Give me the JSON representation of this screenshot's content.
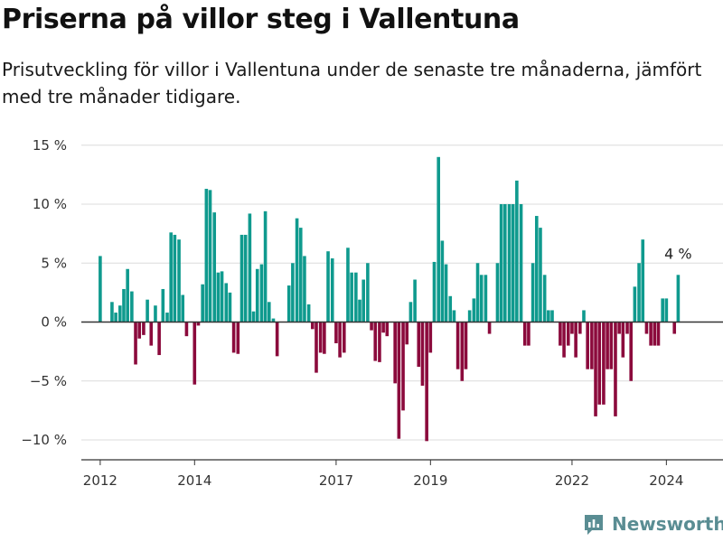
{
  "title": "Priserna på villor steg i Vallentuna",
  "subtitle": "Prisutveckling för villor i Vallentuna under de senaste tre månaderna, jämfört med tre månader tidigare.",
  "brand": "Newsworthy",
  "colors": {
    "positive": "#0f9a8e",
    "negative": "#8b0a3c",
    "grid": "#dcdcdc",
    "zero_line": "#333333",
    "brand": "#5a8d93"
  },
  "chart_data": {
    "type": "bar",
    "title": "Priserna på villor steg i Vallentuna",
    "ylim": [
      -12,
      15
    ],
    "grid": true,
    "x_range": [
      2011.6,
      2025.2
    ],
    "yticks": [
      {
        "value": 15,
        "label": "15 %"
      },
      {
        "value": 10,
        "label": "10 %"
      },
      {
        "value": 5,
        "label": "5 %"
      },
      {
        "value": 0,
        "label": "0 %"
      },
      {
        "value": -5,
        "label": "−5 %"
      },
      {
        "value": -10,
        "label": "−10 %"
      }
    ],
    "xticks": [
      {
        "value": 2012,
        "label": "2012"
      },
      {
        "value": 2014,
        "label": "2014"
      },
      {
        "value": 2017,
        "label": "2017"
      },
      {
        "value": 2019,
        "label": "2019"
      },
      {
        "value": 2022,
        "label": "2022"
      },
      {
        "value": 2024,
        "label": "2024"
      }
    ],
    "annotation": {
      "text": "4 %",
      "year": 2024.25,
      "value": 4
    },
    "series": [
      {
        "values": [
          [
            2012.0,
            5.6
          ],
          [
            2012.25,
            1.7
          ],
          [
            2012.33,
            0.8
          ],
          [
            2012.42,
            1.4
          ],
          [
            2012.5,
            2.8
          ],
          [
            2012.58,
            4.5
          ],
          [
            2012.67,
            2.6
          ],
          [
            2012.75,
            -3.6
          ],
          [
            2012.83,
            -1.4
          ],
          [
            2012.92,
            -1.1
          ],
          [
            2013.0,
            1.9
          ],
          [
            2013.08,
            -2.0
          ],
          [
            2013.17,
            1.4
          ],
          [
            2013.25,
            -2.8
          ],
          [
            2013.33,
            2.8
          ],
          [
            2013.42,
            0.8
          ],
          [
            2013.5,
            7.6
          ],
          [
            2013.58,
            7.4
          ],
          [
            2013.67,
            7.0
          ],
          [
            2013.75,
            2.3
          ],
          [
            2013.83,
            -1.2
          ],
          [
            2014.0,
            -5.3
          ],
          [
            2014.08,
            -0.3
          ],
          [
            2014.17,
            3.2
          ],
          [
            2014.25,
            11.3
          ],
          [
            2014.33,
            11.2
          ],
          [
            2014.42,
            9.3
          ],
          [
            2014.5,
            4.2
          ],
          [
            2014.58,
            4.3
          ],
          [
            2014.67,
            3.3
          ],
          [
            2014.75,
            2.5
          ],
          [
            2014.83,
            -2.6
          ],
          [
            2014.92,
            -2.7
          ],
          [
            2015.0,
            7.4
          ],
          [
            2015.08,
            7.4
          ],
          [
            2015.17,
            9.2
          ],
          [
            2015.25,
            0.9
          ],
          [
            2015.33,
            4.5
          ],
          [
            2015.42,
            4.9
          ],
          [
            2015.5,
            9.4
          ],
          [
            2015.58,
            1.7
          ],
          [
            2015.67,
            0.3
          ],
          [
            2015.75,
            -2.9
          ],
          [
            2016.0,
            3.1
          ],
          [
            2016.08,
            5.0
          ],
          [
            2016.17,
            8.8
          ],
          [
            2016.25,
            8.0
          ],
          [
            2016.33,
            5.6
          ],
          [
            2016.42,
            1.5
          ],
          [
            2016.5,
            -0.6
          ],
          [
            2016.58,
            -4.3
          ],
          [
            2016.67,
            -2.6
          ],
          [
            2016.75,
            -2.7
          ],
          [
            2016.83,
            6.0
          ],
          [
            2016.92,
            5.4
          ],
          [
            2017.0,
            -1.8
          ],
          [
            2017.08,
            -3.0
          ],
          [
            2017.17,
            -2.6
          ],
          [
            2017.25,
            6.3
          ],
          [
            2017.33,
            4.2
          ],
          [
            2017.42,
            4.2
          ],
          [
            2017.5,
            1.9
          ],
          [
            2017.58,
            3.6
          ],
          [
            2017.67,
            5.0
          ],
          [
            2017.75,
            -0.7
          ],
          [
            2017.83,
            -3.3
          ],
          [
            2017.92,
            -3.4
          ],
          [
            2018.0,
            -0.9
          ],
          [
            2018.08,
            -1.2
          ],
          [
            2018.25,
            -5.2
          ],
          [
            2018.33,
            -9.9
          ],
          [
            2018.42,
            -7.5
          ],
          [
            2018.5,
            -1.9
          ],
          [
            2018.58,
            1.7
          ],
          [
            2018.67,
            3.6
          ],
          [
            2018.75,
            -3.8
          ],
          [
            2018.83,
            -5.4
          ],
          [
            2018.92,
            -10.1
          ],
          [
            2019.0,
            -2.6
          ],
          [
            2019.08,
            5.1
          ],
          [
            2019.17,
            14.0
          ],
          [
            2019.25,
            6.9
          ],
          [
            2019.33,
            4.9
          ],
          [
            2019.42,
            2.2
          ],
          [
            2019.5,
            1.0
          ],
          [
            2019.58,
            -4.0
          ],
          [
            2019.67,
            -5.0
          ],
          [
            2019.75,
            -4.0
          ],
          [
            2019.83,
            1.0
          ],
          [
            2019.92,
            2.0
          ],
          [
            2020.0,
            5.0
          ],
          [
            2020.08,
            4.0
          ],
          [
            2020.17,
            4.0
          ],
          [
            2020.25,
            -1.0
          ],
          [
            2020.42,
            5.0
          ],
          [
            2020.5,
            10.0
          ],
          [
            2020.58,
            10.0
          ],
          [
            2020.67,
            10.0
          ],
          [
            2020.75,
            10.0
          ],
          [
            2020.83,
            12.0
          ],
          [
            2020.92,
            10.0
          ],
          [
            2021.0,
            -2.0
          ],
          [
            2021.08,
            -2.0
          ],
          [
            2021.17,
            5.0
          ],
          [
            2021.25,
            9.0
          ],
          [
            2021.33,
            8.0
          ],
          [
            2021.42,
            4.0
          ],
          [
            2021.5,
            1.0
          ],
          [
            2021.58,
            1.0
          ],
          [
            2021.75,
            -2.0
          ],
          [
            2021.83,
            -3.0
          ],
          [
            2021.92,
            -2.0
          ],
          [
            2022.0,
            -1.0
          ],
          [
            2022.08,
            -3.0
          ],
          [
            2022.17,
            -1.0
          ],
          [
            2022.25,
            1.0
          ],
          [
            2022.33,
            -4.0
          ],
          [
            2022.42,
            -4.0
          ],
          [
            2022.5,
            -8.0
          ],
          [
            2022.58,
            -7.0
          ],
          [
            2022.67,
            -7.0
          ],
          [
            2022.75,
            -4.0
          ],
          [
            2022.83,
            -4.0
          ],
          [
            2022.92,
            -8.0
          ],
          [
            2023.0,
            -1.0
          ],
          [
            2023.08,
            -3.0
          ],
          [
            2023.17,
            -1.0
          ],
          [
            2023.25,
            -5.0
          ],
          [
            2023.33,
            3.0
          ],
          [
            2023.42,
            5.0
          ],
          [
            2023.5,
            7.0
          ],
          [
            2023.58,
            -1.0
          ],
          [
            2023.67,
            -2.0
          ],
          [
            2023.75,
            -2.0
          ],
          [
            2023.83,
            -2.0
          ],
          [
            2023.92,
            2.0
          ],
          [
            2024.0,
            2.0
          ],
          [
            2024.17,
            -1.0
          ],
          [
            2024.25,
            4.0
          ]
        ]
      }
    ]
  }
}
